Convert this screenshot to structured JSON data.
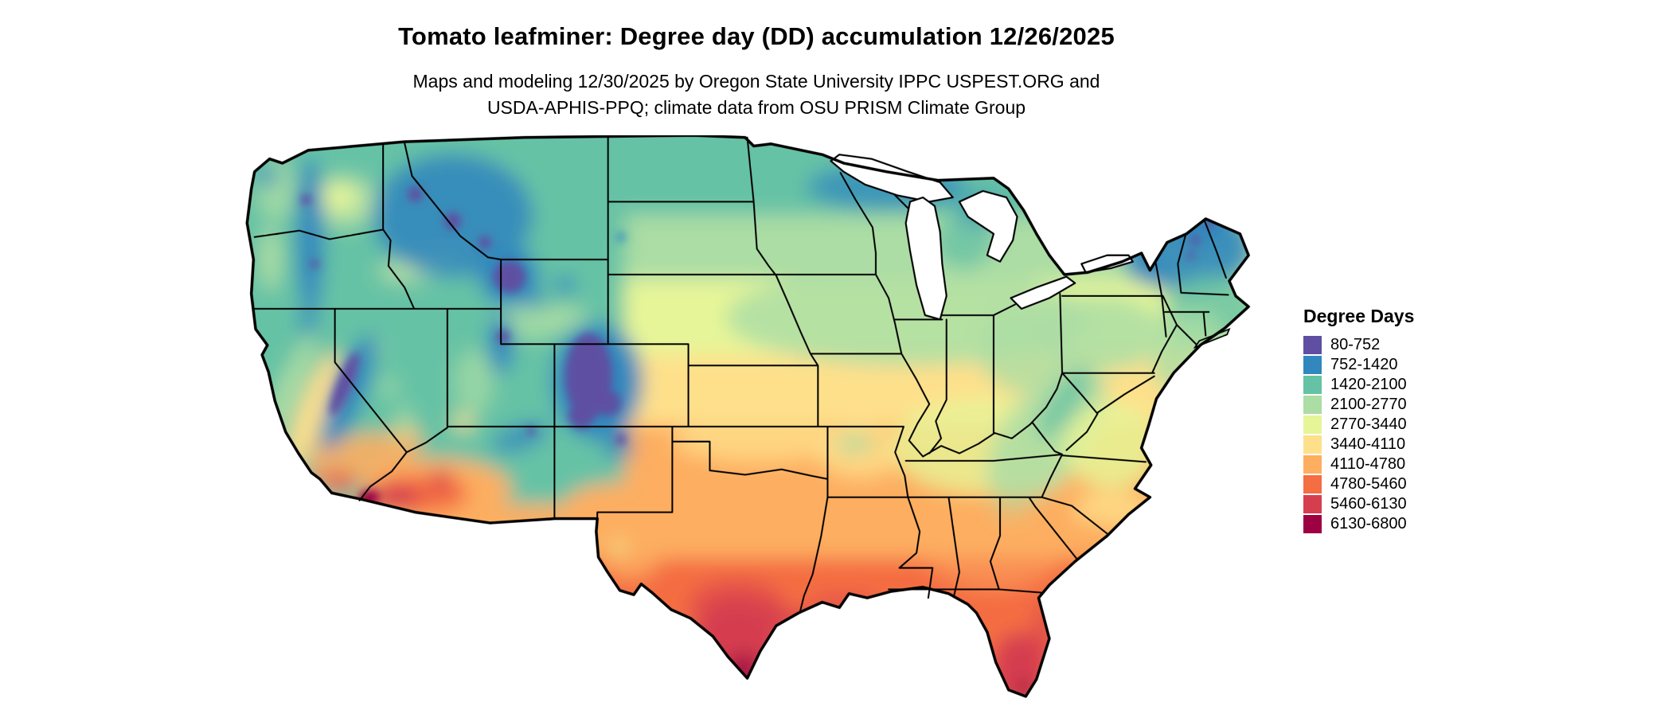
{
  "title": "Tomato leafminer: Degree day (DD) accumulation 12/26/2025",
  "subtitle_line1": "Maps and modeling 12/30/2025 by Oregon State University IPPC USPEST.ORG and",
  "subtitle_line2": "USDA-APHIS-PPQ; climate data from OSU PRISM Climate Group",
  "map": {
    "region": "Continental United States",
    "kind": "degree-day accumulation choropleth raster with state borders"
  },
  "legend": {
    "title": "Degree Days",
    "entries": [
      {
        "label": "80-752",
        "color": "#5e4fa2"
      },
      {
        "label": "752-1420",
        "color": "#3288bd"
      },
      {
        "label": "1420-2100",
        "color": "#66c2a5"
      },
      {
        "label": "2100-2770",
        "color": "#abdda4"
      },
      {
        "label": "2770-3440",
        "color": "#e6f598"
      },
      {
        "label": "3440-4110",
        "color": "#fee08b"
      },
      {
        "label": "4110-4780",
        "color": "#fdae61"
      },
      {
        "label": "4780-5460",
        "color": "#f46d43"
      },
      {
        "label": "5460-6130",
        "color": "#d53e4f"
      },
      {
        "label": "6130-6800",
        "color": "#9e0142"
      }
    ]
  }
}
